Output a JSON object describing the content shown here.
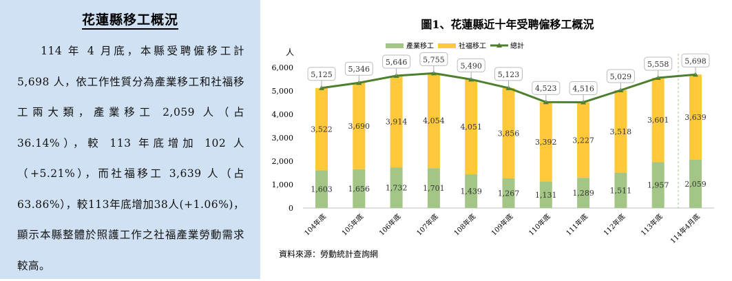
{
  "summary": {
    "title": "花蓮縣移工概況",
    "body": "114 年 4 月底，本縣受聘僱移工計 5,698 人，依工作性質分為產業移工和社福移工兩大類，產業移工 2,059 人（占 36.14%），較 113 年底增加 102 人（+5.21%），而社福移工 3,639 人（占 63.86%），較113年底增加38人(+1.06%)，顯示本縣整體於照護工作之社福產業勞動需求較高。"
  },
  "chart_data": {
    "type": "bar",
    "stacked": true,
    "title": "圖1、花蓮縣近十年受聘僱移工概況",
    "ylabel": "人",
    "xlabel": "",
    "ylim": [
      0,
      6000
    ],
    "yticks": [
      "0",
      "1,000",
      "2,000",
      "3,000",
      "4,000",
      "5,000",
      "6,000"
    ],
    "ytick_values": [
      0,
      1000,
      2000,
      3000,
      4000,
      5000,
      6000
    ],
    "grid": false,
    "legend_position": "top",
    "categories": [
      "104年底",
      "105年底",
      "106年底",
      "107年底",
      "108年底",
      "109年底",
      "110年底",
      "111年底",
      "112年底",
      "113年底",
      "114年4月底"
    ],
    "series": [
      {
        "name": "產業移工",
        "kind": "bar",
        "color": "#a3c585",
        "values": [
          1603,
          1656,
          1732,
          1701,
          1439,
          1267,
          1131,
          1289,
          1511,
          1957,
          2059
        ],
        "labels": [
          "1,603",
          "1,656",
          "1,732",
          "1,701",
          "1,439",
          "1,267",
          "1,131",
          "1,289",
          "1,511",
          "1,957",
          "2,059"
        ]
      },
      {
        "name": "社福移工",
        "kind": "bar",
        "color": "#fdc93b",
        "values": [
          3522,
          3690,
          3914,
          4054,
          4051,
          3856,
          3392,
          3227,
          3518,
          3601,
          3639
        ],
        "labels": [
          "3,522",
          "3,690",
          "3,914",
          "4,054",
          "4,051",
          "3,856",
          "3,392",
          "3,227",
          "3,518",
          "3,601",
          "3,639"
        ]
      },
      {
        "name": "總計",
        "kind": "line",
        "color": "#4e7f2f",
        "values": [
          5125,
          5346,
          5646,
          5755,
          5490,
          5123,
          4523,
          4516,
          5029,
          5558,
          5698
        ],
        "labels": [
          "5,125",
          "5,346",
          "5,646",
          "5,755",
          "5,490",
          "5,123",
          "4,523",
          "4,516",
          "5,029",
          "5,558",
          "5,698"
        ]
      }
    ],
    "source": "資料來源：勞動統計查詢網"
  }
}
